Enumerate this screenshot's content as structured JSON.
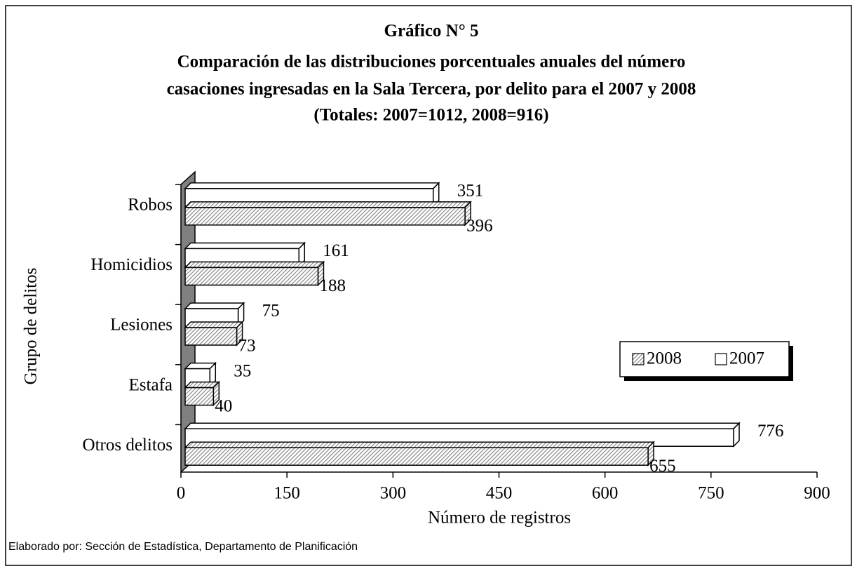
{
  "chart_data": {
    "type": "bar",
    "orientation": "horizontal",
    "title": [
      "Gráfico N° 5",
      "Comparación de las distribuciones porcentuales anuales del número",
      "casaciones ingresadas en la Sala Tercera, por delito para el 2007 y 2008",
      "(Totales: 2007=1012, 2008=916)"
    ],
    "categories": [
      "Robos",
      "Homicidios",
      "Lesiones",
      "Estafa",
      "Otros delitos"
    ],
    "series": [
      {
        "name": "2008",
        "color": "#8c8c8c",
        "values": [
          396,
          188,
          73,
          40,
          655
        ]
      },
      {
        "name": "2007",
        "color": "#ffffff",
        "values": [
          351,
          161,
          75,
          35,
          776
        ]
      }
    ],
    "xlabel": "Número de registros",
    "ylabel": "Grupo de delitos",
    "xlim": [
      0,
      900
    ],
    "xticks": [
      0,
      150,
      300,
      450,
      600,
      750,
      900
    ],
    "legend": "right",
    "footnote": "Elaborado por: Sección de Estadística, Departamento de Planificación"
  }
}
